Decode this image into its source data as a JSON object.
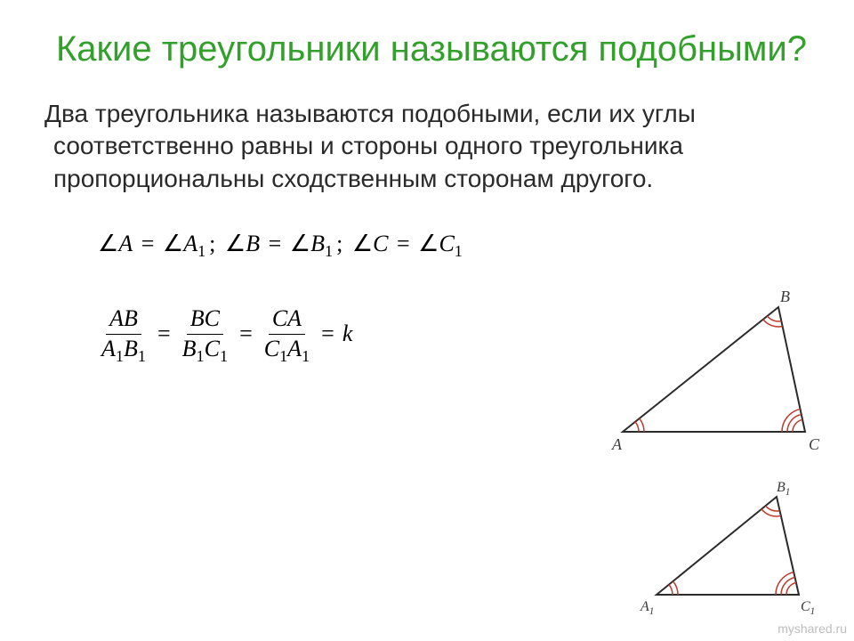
{
  "title_color": "#33a02c",
  "body_color": "#2a2a2a",
  "title": "Какие треугольники называются подобными?",
  "body": "Два треугольника называются подобными, если их углы соответственно равны и стороны одного треугольника пропорциональны сходственным сторонам другого.",
  "formula1": {
    "parts": [
      {
        "lhs": "A",
        "rhs": "A",
        "sub": "1"
      },
      {
        "lhs": "B",
        "rhs": "B",
        "sub": "1"
      },
      {
        "lhs": "C",
        "rhs": "C",
        "sub": "1"
      }
    ],
    "sep": ";",
    "eq": "="
  },
  "formula2": {
    "fracs": [
      {
        "num": "AB",
        "denL": "A",
        "denLs": "1",
        "denR": "B",
        "denRs": "1"
      },
      {
        "num": "BC",
        "denL": "B",
        "denLs": "1",
        "denR": "C",
        "denRs": "1"
      },
      {
        "num": "CA",
        "denL": "C",
        "denLs": "1",
        "denR": "A",
        "denRs": "1"
      }
    ],
    "eq": "=",
    "tail": "k"
  },
  "triangle_large": {
    "label_A": "A",
    "label_B": "B",
    "label_C": "C",
    "points": {
      "A": [
        20,
        160
      ],
      "B": [
        195,
        20
      ],
      "C": [
        225,
        160
      ]
    },
    "stroke": "#2b2b2b",
    "fill": "none",
    "arc_color_A": "#c0392b",
    "arc_color_B": "#c0392b",
    "arc_color_C": "#c0392b",
    "label_color": "#3a3a3a",
    "label_fontsize": 18
  },
  "triangle_small": {
    "label_A": "A",
    "label_As": "1",
    "label_B": "B",
    "label_Bs": "1",
    "label_C": "C",
    "label_Cs": "1",
    "points": {
      "A": [
        40,
        140
      ],
      "B": [
        175,
        30
      ],
      "C": [
        200,
        140
      ]
    },
    "stroke": "#2b2b2b",
    "fill": "none",
    "arc_color": "#c0392b",
    "label_color": "#3a3a3a",
    "label_fontsize": 16
  },
  "watermark": "myshared.ru"
}
